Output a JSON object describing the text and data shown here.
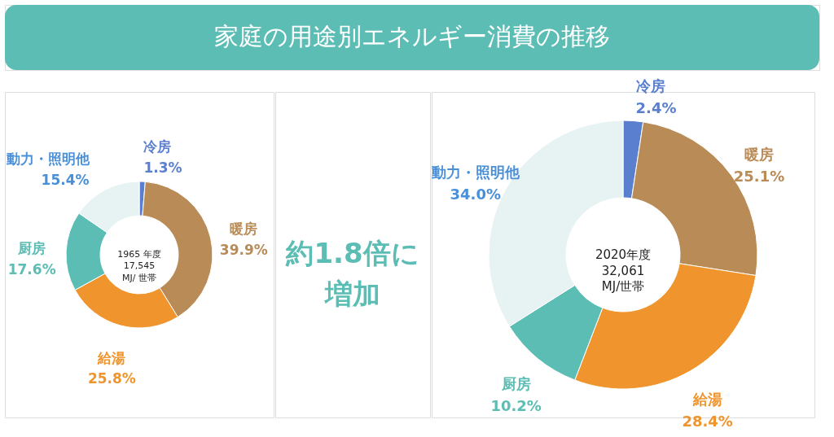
{
  "chart_data": [
    {
      "type": "donut",
      "title": "家庭の用途別エネルギー消費の推移",
      "categories": [
        "冷房",
        "暖房",
        "給湯",
        "厨房",
        "動力・照明他"
      ],
      "values": [
        1.3,
        39.9,
        25.8,
        17.6,
        15.4
      ],
      "value_labels": [
        "1.3%",
        "39.9%",
        "25.8%",
        "17.6%",
        "15.4%"
      ],
      "colors": [
        "#5b7fcf",
        "#b98b57",
        "#f0952e",
        "#5bbdb4",
        "#e6f3f2"
      ],
      "annotations": [
        "1965 年度",
        "17,545",
        "MJ/ 世帯",
        "約1.8倍に",
        "増加"
      ]
    },
    {
      "type": "donut",
      "categories": [
        "冷房",
        "暖房",
        "給湯",
        "厨房",
        "動力・照明他"
      ],
      "values": [
        2.4,
        25.1,
        28.4,
        10.2,
        34.0
      ],
      "value_labels": [
        "2.4%",
        "25.1%",
        "28.4%",
        "10.2%",
        "34.0%"
      ],
      "colors": [
        "#5b7fcf",
        "#b98b57",
        "#f0952e",
        "#5bbdb4",
        "#e6f3f2"
      ],
      "annotations": [
        "2020年度",
        "32,061",
        "MJ/世帯"
      ]
    }
  ]
}
